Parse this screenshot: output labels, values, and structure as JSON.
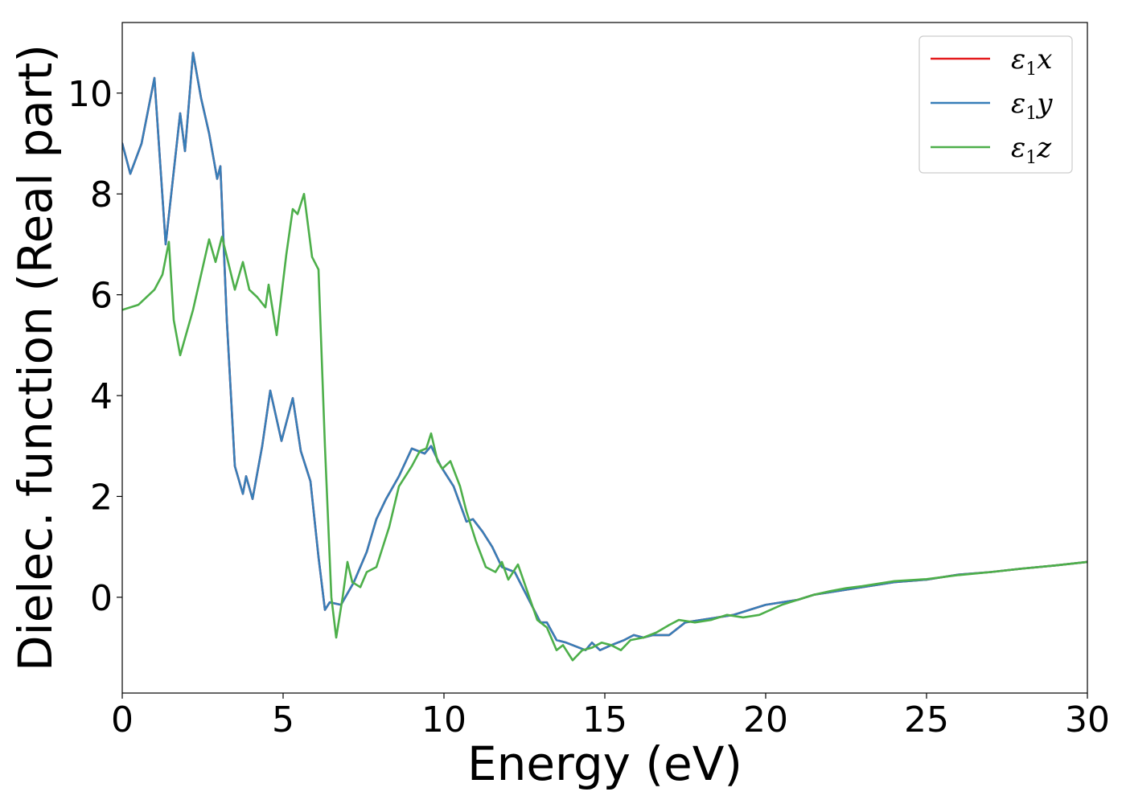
{
  "chart_data": {
    "type": "line",
    "title": "",
    "xlabel": "Energy (eV)",
    "ylabel": "Dielec. function (Real part)",
    "xlim": [
      0,
      30
    ],
    "ylim": [
      -1.9,
      11.4
    ],
    "x_ticks": [
      0,
      5,
      10,
      15,
      20,
      25,
      30
    ],
    "y_ticks": [
      0,
      2,
      4,
      6,
      8,
      10
    ],
    "grid": false,
    "legend_position": "top-right",
    "series": [
      {
        "name": "ε1x",
        "color": "#e41a1c",
        "points": [
          [
            0,
            9.0
          ],
          [
            0.25,
            8.4
          ],
          [
            0.6,
            9.0
          ],
          [
            1.0,
            10.3
          ],
          [
            1.35,
            7.0
          ],
          [
            1.8,
            9.6
          ],
          [
            1.95,
            8.85
          ],
          [
            2.2,
            10.8
          ],
          [
            2.45,
            9.9
          ],
          [
            2.7,
            9.2
          ],
          [
            2.95,
            8.3
          ],
          [
            3.05,
            8.55
          ],
          [
            3.25,
            5.5
          ],
          [
            3.5,
            2.6
          ],
          [
            3.75,
            2.05
          ],
          [
            3.85,
            2.4
          ],
          [
            4.05,
            1.95
          ],
          [
            4.35,
            3.0
          ],
          [
            4.6,
            4.1
          ],
          [
            4.95,
            3.1
          ],
          [
            5.3,
            3.95
          ],
          [
            5.55,
            2.9
          ],
          [
            5.85,
            2.3
          ],
          [
            6.1,
            0.8
          ],
          [
            6.3,
            -0.25
          ],
          [
            6.45,
            -0.1
          ],
          [
            6.8,
            -0.15
          ],
          [
            7.2,
            0.3
          ],
          [
            7.6,
            0.9
          ],
          [
            7.9,
            1.55
          ],
          [
            8.2,
            1.95
          ],
          [
            8.6,
            2.4
          ],
          [
            9.0,
            2.95
          ],
          [
            9.4,
            2.85
          ],
          [
            9.6,
            3.0
          ],
          [
            9.9,
            2.6
          ],
          [
            10.3,
            2.2
          ],
          [
            10.7,
            1.5
          ],
          [
            10.9,
            1.55
          ],
          [
            11.2,
            1.3
          ],
          [
            11.5,
            1.0
          ],
          [
            11.8,
            0.6
          ],
          [
            12.2,
            0.5
          ],
          [
            12.6,
            0.0
          ],
          [
            13.0,
            -0.5
          ],
          [
            13.2,
            -0.5
          ],
          [
            13.5,
            -0.85
          ],
          [
            13.8,
            -0.9
          ],
          [
            14.2,
            -1.0
          ],
          [
            14.4,
            -1.05
          ],
          [
            14.6,
            -0.9
          ],
          [
            14.85,
            -1.05
          ],
          [
            15.2,
            -0.95
          ],
          [
            15.6,
            -0.85
          ],
          [
            15.9,
            -0.75
          ],
          [
            16.2,
            -0.8
          ],
          [
            16.5,
            -0.75
          ],
          [
            17.0,
            -0.75
          ],
          [
            17.5,
            -0.5
          ],
          [
            18.0,
            -0.45
          ],
          [
            18.5,
            -0.4
          ],
          [
            19.0,
            -0.35
          ],
          [
            19.5,
            -0.25
          ],
          [
            20.0,
            -0.15
          ],
          [
            20.5,
            -0.1
          ],
          [
            21.0,
            -0.05
          ],
          [
            21.5,
            0.05
          ],
          [
            22.0,
            0.1
          ],
          [
            22.5,
            0.15
          ],
          [
            23.0,
            0.2
          ],
          [
            23.5,
            0.25
          ],
          [
            24.0,
            0.3
          ],
          [
            25.0,
            0.35
          ],
          [
            26.0,
            0.45
          ],
          [
            27.0,
            0.5
          ],
          [
            28.0,
            0.57
          ],
          [
            29.0,
            0.63
          ],
          [
            30.0,
            0.7
          ]
        ]
      },
      {
        "name": "ε1y",
        "color": "#377eb8",
        "points": [
          [
            0,
            9.0
          ],
          [
            0.25,
            8.4
          ],
          [
            0.6,
            9.0
          ],
          [
            1.0,
            10.3
          ],
          [
            1.35,
            7.0
          ],
          [
            1.8,
            9.6
          ],
          [
            1.95,
            8.85
          ],
          [
            2.2,
            10.8
          ],
          [
            2.45,
            9.9
          ],
          [
            2.7,
            9.2
          ],
          [
            2.95,
            8.3
          ],
          [
            3.05,
            8.55
          ],
          [
            3.25,
            5.5
          ],
          [
            3.5,
            2.6
          ],
          [
            3.75,
            2.05
          ],
          [
            3.85,
            2.4
          ],
          [
            4.05,
            1.95
          ],
          [
            4.35,
            3.0
          ],
          [
            4.6,
            4.1
          ],
          [
            4.95,
            3.1
          ],
          [
            5.3,
            3.95
          ],
          [
            5.55,
            2.9
          ],
          [
            5.85,
            2.3
          ],
          [
            6.1,
            0.8
          ],
          [
            6.3,
            -0.25
          ],
          [
            6.45,
            -0.1
          ],
          [
            6.8,
            -0.15
          ],
          [
            7.2,
            0.3
          ],
          [
            7.6,
            0.9
          ],
          [
            7.9,
            1.55
          ],
          [
            8.2,
            1.95
          ],
          [
            8.6,
            2.4
          ],
          [
            9.0,
            2.95
          ],
          [
            9.4,
            2.85
          ],
          [
            9.6,
            3.0
          ],
          [
            9.9,
            2.6
          ],
          [
            10.3,
            2.2
          ],
          [
            10.7,
            1.5
          ],
          [
            10.9,
            1.55
          ],
          [
            11.2,
            1.3
          ],
          [
            11.5,
            1.0
          ],
          [
            11.8,
            0.6
          ],
          [
            12.2,
            0.5
          ],
          [
            12.6,
            0.0
          ],
          [
            13.0,
            -0.5
          ],
          [
            13.2,
            -0.5
          ],
          [
            13.5,
            -0.85
          ],
          [
            13.8,
            -0.9
          ],
          [
            14.2,
            -1.0
          ],
          [
            14.4,
            -1.05
          ],
          [
            14.6,
            -0.9
          ],
          [
            14.85,
            -1.05
          ],
          [
            15.2,
            -0.95
          ],
          [
            15.6,
            -0.85
          ],
          [
            15.9,
            -0.75
          ],
          [
            16.2,
            -0.8
          ],
          [
            16.5,
            -0.75
          ],
          [
            17.0,
            -0.75
          ],
          [
            17.5,
            -0.5
          ],
          [
            18.0,
            -0.45
          ],
          [
            18.5,
            -0.4
          ],
          [
            19.0,
            -0.35
          ],
          [
            19.5,
            -0.25
          ],
          [
            20.0,
            -0.15
          ],
          [
            20.5,
            -0.1
          ],
          [
            21.0,
            -0.05
          ],
          [
            21.5,
            0.05
          ],
          [
            22.0,
            0.1
          ],
          [
            22.5,
            0.15
          ],
          [
            23.0,
            0.2
          ],
          [
            23.5,
            0.25
          ],
          [
            24.0,
            0.3
          ],
          [
            25.0,
            0.35
          ],
          [
            26.0,
            0.45
          ],
          [
            27.0,
            0.5
          ],
          [
            28.0,
            0.57
          ],
          [
            29.0,
            0.63
          ],
          [
            30.0,
            0.7
          ]
        ]
      },
      {
        "name": "ε1z",
        "color": "#4daf4a",
        "points": [
          [
            0,
            5.7
          ],
          [
            0.5,
            5.8
          ],
          [
            1.0,
            6.1
          ],
          [
            1.25,
            6.4
          ],
          [
            1.45,
            7.05
          ],
          [
            1.6,
            5.5
          ],
          [
            1.8,
            4.8
          ],
          [
            2.2,
            5.7
          ],
          [
            2.7,
            7.1
          ],
          [
            2.9,
            6.65
          ],
          [
            3.1,
            7.15
          ],
          [
            3.5,
            6.1
          ],
          [
            3.75,
            6.65
          ],
          [
            3.95,
            6.1
          ],
          [
            4.2,
            5.95
          ],
          [
            4.45,
            5.75
          ],
          [
            4.55,
            6.2
          ],
          [
            4.8,
            5.2
          ],
          [
            5.1,
            6.8
          ],
          [
            5.3,
            7.7
          ],
          [
            5.45,
            7.6
          ],
          [
            5.65,
            8.0
          ],
          [
            5.9,
            6.75
          ],
          [
            6.1,
            6.5
          ],
          [
            6.3,
            3.0
          ],
          [
            6.5,
            0.0
          ],
          [
            6.65,
            -0.8
          ],
          [
            6.85,
            0.0
          ],
          [
            7.0,
            0.7
          ],
          [
            7.15,
            0.3
          ],
          [
            7.4,
            0.2
          ],
          [
            7.6,
            0.5
          ],
          [
            7.9,
            0.6
          ],
          [
            8.1,
            1.0
          ],
          [
            8.3,
            1.4
          ],
          [
            8.6,
            2.2
          ],
          [
            9.0,
            2.6
          ],
          [
            9.25,
            2.9
          ],
          [
            9.45,
            2.95
          ],
          [
            9.6,
            3.25
          ],
          [
            9.8,
            2.7
          ],
          [
            9.95,
            2.55
          ],
          [
            10.2,
            2.7
          ],
          [
            10.5,
            2.2
          ],
          [
            10.7,
            1.7
          ],
          [
            11.0,
            1.1
          ],
          [
            11.3,
            0.6
          ],
          [
            11.6,
            0.5
          ],
          [
            11.8,
            0.7
          ],
          [
            12.0,
            0.35
          ],
          [
            12.3,
            0.65
          ],
          [
            12.6,
            0.1
          ],
          [
            12.9,
            -0.45
          ],
          [
            13.2,
            -0.6
          ],
          [
            13.5,
            -1.05
          ],
          [
            13.7,
            -0.95
          ],
          [
            14.0,
            -1.25
          ],
          [
            14.3,
            -1.05
          ],
          [
            14.6,
            -1.0
          ],
          [
            14.9,
            -0.9
          ],
          [
            15.2,
            -0.95
          ],
          [
            15.5,
            -1.05
          ],
          [
            15.8,
            -0.85
          ],
          [
            16.2,
            -0.8
          ],
          [
            16.6,
            -0.7
          ],
          [
            17.0,
            -0.55
          ],
          [
            17.3,
            -0.45
          ],
          [
            17.8,
            -0.5
          ],
          [
            18.3,
            -0.45
          ],
          [
            18.8,
            -0.35
          ],
          [
            19.3,
            -0.4
          ],
          [
            19.8,
            -0.35
          ],
          [
            20.5,
            -0.15
          ],
          [
            21.0,
            -0.05
          ],
          [
            21.5,
            0.05
          ],
          [
            22.0,
            0.12
          ],
          [
            22.5,
            0.18
          ],
          [
            23.0,
            0.22
          ],
          [
            23.5,
            0.27
          ],
          [
            24.0,
            0.32
          ],
          [
            25.0,
            0.36
          ],
          [
            26.0,
            0.44
          ],
          [
            27.0,
            0.5
          ],
          [
            28.0,
            0.57
          ],
          [
            29.0,
            0.63
          ],
          [
            30.0,
            0.7
          ]
        ]
      }
    ]
  }
}
